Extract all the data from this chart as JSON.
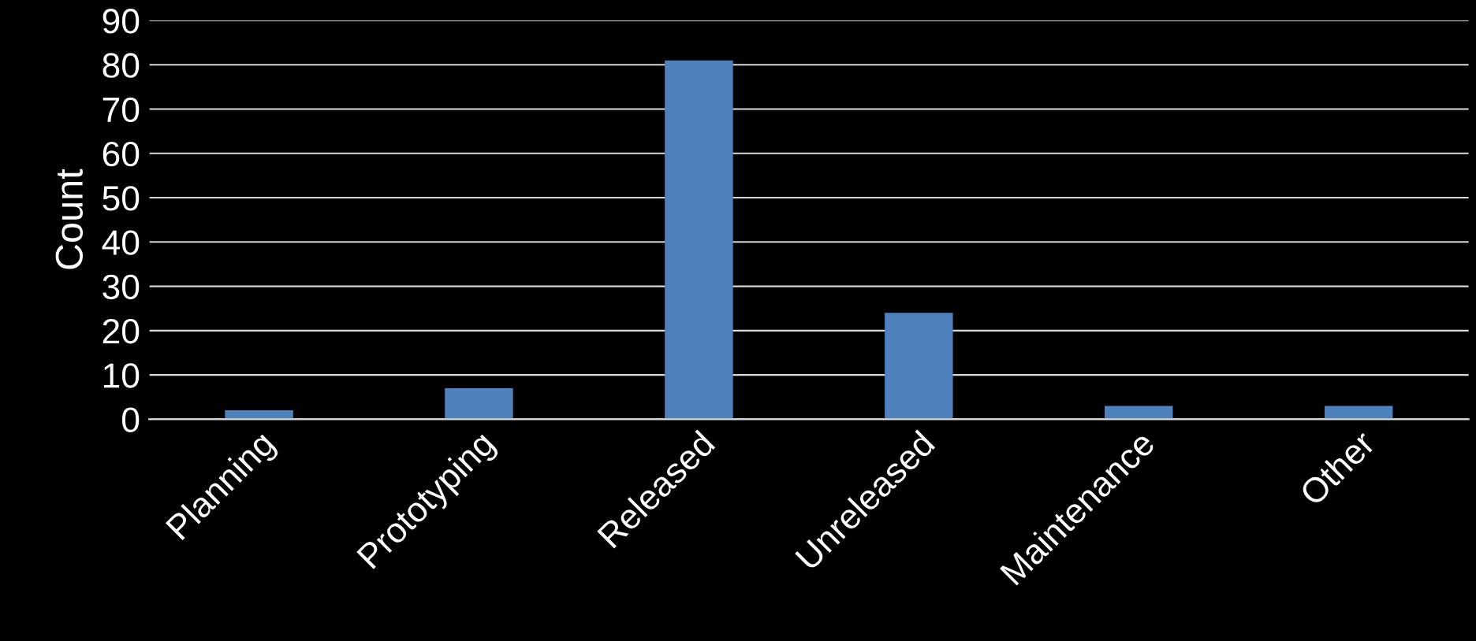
{
  "chart_data": {
    "type": "bar",
    "ylabel": "Count",
    "categories": [
      "Planning",
      "Prototyping",
      "Released",
      "Unreleased",
      "Maintenance",
      "Other"
    ],
    "values": [
      2,
      7,
      81,
      24,
      3,
      3
    ],
    "color": "#4f81bd",
    "ylim": [
      0,
      90
    ],
    "yticks": [
      0,
      10,
      20,
      30,
      40,
      50,
      60,
      70,
      80,
      90
    ],
    "grid": "y"
  }
}
